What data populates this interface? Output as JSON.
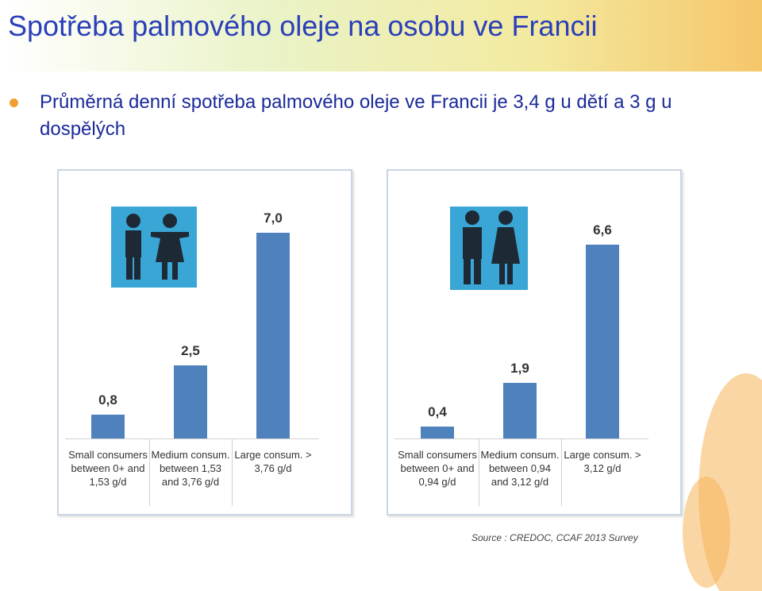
{
  "title": "Spotřeba palmového oleje na osobu ve Francii",
  "bullet": "Průměrná denní spotřeba palmového oleje ve Francii je 3,4 g u dětí a 3 g u dospělých",
  "source": "Source : CREDOC, CCAF 2013 Survey",
  "chart_data": [
    {
      "type": "bar",
      "color": "#4f81bd",
      "categories": [
        "Small consumers between 0+ and 1,53 g/d",
        "Medium consum. between 1,53 and 3,76 g/d",
        "Large consum. > 3,76 g/d"
      ],
      "values": [
        0.8,
        2.5,
        7.0
      ],
      "value_labels": [
        "0,8",
        "2,5",
        "7,0"
      ]
    },
    {
      "type": "bar",
      "color": "#4f81bd",
      "categories": [
        "Small consumers between 0+ and 0,94 g/d",
        "Medium consum. between 0,94 and 3,12 g/d",
        "Large consum. > 3,12 g/d"
      ],
      "values": [
        0.4,
        1.9,
        6.6
      ],
      "value_labels": [
        "0,4",
        "1,9",
        "6,6"
      ]
    }
  ]
}
